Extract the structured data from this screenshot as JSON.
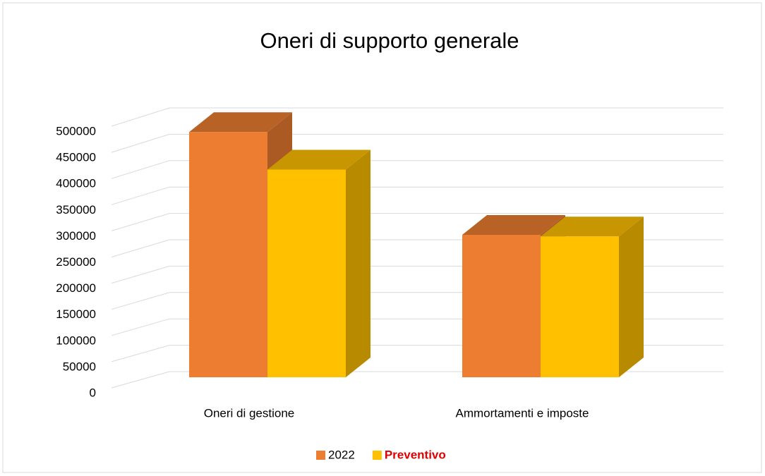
{
  "chart_data": {
    "type": "bar3d",
    "title": "Oneri di supporto generale",
    "categories": [
      "Oneri di gestione",
      "Ammortamenti e imposte"
    ],
    "series": [
      {
        "name": "2022",
        "color": "#ed7d31",
        "values": [
          470000,
          273000
        ]
      },
      {
        "name": "Preventivo",
        "color": "#ffc000",
        "values": [
          398000,
          270000
        ]
      }
    ],
    "ylim": [
      0,
      500000
    ],
    "yticks": [
      0,
      50000,
      100000,
      150000,
      200000,
      250000,
      300000,
      350000,
      400000,
      450000,
      500000
    ],
    "grid": true,
    "legend": "bottom"
  }
}
